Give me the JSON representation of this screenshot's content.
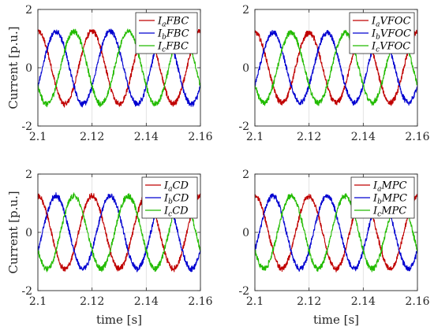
{
  "chart_data": [
    {
      "type": "line",
      "xlim": [
        2.1,
        2.16
      ],
      "ylim": [
        -2,
        2
      ],
      "xticks": [
        "2.1",
        "2.12",
        "2.14",
        "2.16"
      ],
      "yticks": [
        "2",
        "0",
        "-2"
      ],
      "xlabel": "",
      "ylabel": "Current [p.u.]",
      "grid": true,
      "legend_position": "top-right",
      "amplitude": 1.25,
      "frequency_hz": 50,
      "noise_level": "moderate",
      "series": [
        {
          "name": "IaFBC",
          "legend_main": "I",
          "legend_sub": "a",
          "legend_tail": "FBC",
          "color": "#c00000",
          "phase_deg": 90
        },
        {
          "name": "IbFBC",
          "legend_main": "I",
          "legend_sub": "b",
          "legend_tail": "FBC",
          "color": "#0000d0",
          "phase_deg": -30
        },
        {
          "name": "IcFBC",
          "legend_main": "I",
          "legend_sub": "c",
          "legend_tail": "FBC",
          "color": "#22bb00",
          "phase_deg": 210
        }
      ]
    },
    {
      "type": "line",
      "xlim": [
        2.1,
        2.16
      ],
      "ylim": [
        -2,
        2
      ],
      "xticks": [
        "2.1",
        "2.12",
        "2.14",
        "2.16"
      ],
      "yticks": [
        "2",
        "0",
        "-2"
      ],
      "xlabel": "",
      "ylabel": "",
      "grid": true,
      "legend_position": "top-right",
      "amplitude": 1.2,
      "frequency_hz": 50,
      "noise_level": "moderate",
      "series": [
        {
          "name": "IaVFOC",
          "legend_main": "I",
          "legend_sub": "a",
          "legend_tail": "VFOC",
          "color": "#c00000",
          "phase_deg": 90
        },
        {
          "name": "IbVFOC",
          "legend_main": "I",
          "legend_sub": "b",
          "legend_tail": "VFOC",
          "color": "#0000d0",
          "phase_deg": -30
        },
        {
          "name": "IcVFOC",
          "legend_main": "I",
          "legend_sub": "c",
          "legend_tail": "VFOC",
          "color": "#22bb00",
          "phase_deg": 210
        }
      ]
    },
    {
      "type": "line",
      "xlim": [
        2.1,
        2.16
      ],
      "ylim": [
        -2,
        2
      ],
      "xticks": [
        "2.1",
        "2.12",
        "2.14",
        "2.16"
      ],
      "yticks": [
        "2",
        "0",
        "-2"
      ],
      "xlabel": "time [s]",
      "ylabel": "Current [p.u.]",
      "grid": true,
      "legend_position": "top-right",
      "amplitude": 1.25,
      "frequency_hz": 50,
      "noise_level": "moderate",
      "series": [
        {
          "name": "IaCD",
          "legend_main": "I",
          "legend_sub": "a",
          "legend_tail": "CD",
          "color": "#c00000",
          "phase_deg": 90
        },
        {
          "name": "IbCD",
          "legend_main": "I",
          "legend_sub": "b",
          "legend_tail": "CD",
          "color": "#0000d0",
          "phase_deg": -30
        },
        {
          "name": "IcCD",
          "legend_main": "I",
          "legend_sub": "c",
          "legend_tail": "CD",
          "color": "#22bb00",
          "phase_deg": 210
        }
      ]
    },
    {
      "type": "line",
      "xlim": [
        2.1,
        2.16
      ],
      "ylim": [
        -2,
        2
      ],
      "xticks": [
        "2.1",
        "2.12",
        "2.14",
        "2.16"
      ],
      "yticks": [
        "2",
        "0",
        "-2"
      ],
      "xlabel": "time [s]",
      "ylabel": "",
      "grid": true,
      "legend_position": "top-right",
      "amplitude": 1.25,
      "frequency_hz": 50,
      "noise_level": "moderate",
      "series": [
        {
          "name": "IaMPC",
          "legend_main": "I",
          "legend_sub": "a",
          "legend_tail": "MPC",
          "color": "#c00000",
          "phase_deg": 90
        },
        {
          "name": "IbMPC",
          "legend_main": "I",
          "legend_sub": "b",
          "legend_tail": "MPC",
          "color": "#0000d0",
          "phase_deg": -30
        },
        {
          "name": "IcMPC",
          "legend_main": "I",
          "legend_sub": "c",
          "legend_tail": "MPC",
          "color": "#22bb00",
          "phase_deg": 210
        }
      ]
    }
  ]
}
